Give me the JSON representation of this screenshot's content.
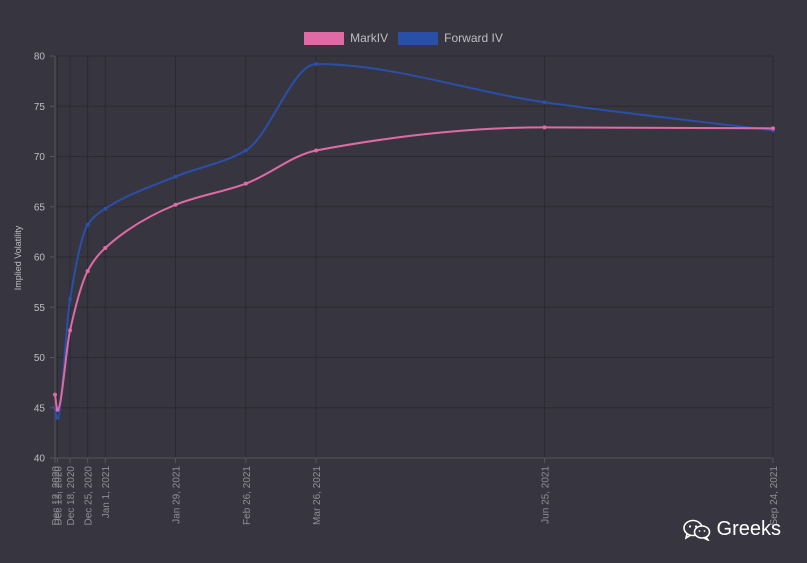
{
  "chart_data": {
    "type": "line",
    "ylabel": "Implied Volatility",
    "ylim": [
      40,
      80
    ],
    "yticks": [
      40,
      45,
      50,
      55,
      60,
      65,
      70,
      75,
      80
    ],
    "x_dates": [
      "Dec 12, 2020",
      "Dec 13, 2020",
      "Dec 18, 2020",
      "Dec 25, 2020",
      "Jan 1, 2021",
      "Jan 29, 2021",
      "Feb 26, 2021",
      "Mar 26, 2021",
      "Jun 25, 2021",
      "Sep 24, 2021"
    ],
    "xticks": [
      {
        "date": "Dec 12, 2020",
        "label": "Dec 12, 2020"
      },
      {
        "date": "Dec 13, 2020",
        "label": "Dec 13, 2020"
      },
      {
        "date": "Dec 18, 2020",
        "label": "Dec 18, 2020"
      },
      {
        "date": "Dec 25, 2020",
        "label": "Dec 25, 2020"
      },
      {
        "date": "Jan 1, 2021",
        "label": "Jan 1, 2021"
      },
      {
        "date": "Jan 29, 2021",
        "label": "Jan 29, 2021"
      },
      {
        "date": "Feb 26, 2021",
        "label": "Feb 26, 2021"
      },
      {
        "date": "Mar 26, 2021",
        "label": "Mar 26, 2021"
      },
      {
        "date": "Jun 25, 2021",
        "label": "Jun 25, 2021"
      },
      {
        "date": "Sep 24, 2021",
        "label": "Sep 24, 2021"
      }
    ],
    "series": [
      {
        "name": "MarkIV",
        "color": "#e06aa6",
        "values": [
          46.3,
          44.8,
          52.7,
          58.6,
          60.9,
          65.2,
          67.3,
          70.6,
          72.9,
          72.8
        ]
      },
      {
        "name": "Forward IV",
        "color": "#2a4fa8",
        "values": [
          45.0,
          44.0,
          55.8,
          63.2,
          64.8,
          68.0,
          70.6,
          79.2,
          75.4,
          72.6
        ]
      }
    ],
    "grid": true,
    "legend_position": "top"
  },
  "watermark": {
    "text": "Greeks",
    "icon": "wechat-icon"
  }
}
